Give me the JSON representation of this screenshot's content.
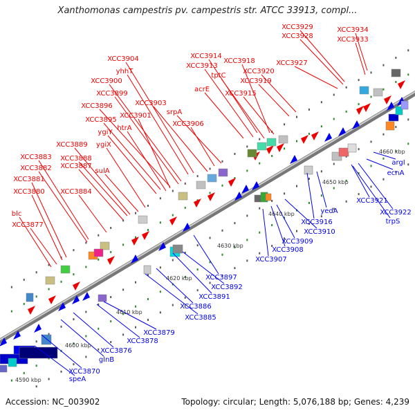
{
  "title": "Xanthomonas campestris pv. campestris str. ATCC 33913, compl...",
  "footer": {
    "accession": "Accession: NC_003902",
    "summary": "Topology: circular; Length: 5,076,188 bp; Genes: 4,239"
  },
  "colors": {
    "forward": "#ee0000",
    "reverse": "#0000ee",
    "axis": "#999999",
    "tick": "#228822"
  },
  "kbp_ticks": [
    "4590 kbp",
    "4600 kbp",
    "4610 kbp",
    "4620 kbp",
    "4630 kbp",
    "4640 kbp",
    "4650 kbp",
    "4660 kbp"
  ],
  "forward_labels": [
    "XCC3929",
    "XCC3928",
    "XCC3934",
    "XCC3933",
    "XCC3914",
    "XCC3918",
    "XCC3913",
    "XCC3927",
    "XCC3904",
    "tptC",
    "XCC3920",
    "yhhT",
    "XCC3919",
    "acrE",
    "XCC3915",
    "XCC3900",
    "XCC3899",
    "XCC3903",
    "XCC3896",
    "srpA",
    "XCC3901",
    "XCC3895",
    "XCC3906",
    "ygiY",
    "htrA",
    "XCC3889",
    "ygiX",
    "XCC3883",
    "XCC3888",
    "XCC3882",
    "XCC3887",
    "sulA",
    "XCC3881",
    "XCC3880",
    "XCC3884",
    "blc",
    "XCC3877"
  ],
  "reverse_labels": [
    "argI",
    "ecnA",
    "XCC3921",
    "XCC3922",
    "trpS",
    "yedA",
    "XCC3916",
    "XCC3910",
    "XCC3909",
    "XCC3908",
    "XCC3907",
    "XCC3897",
    "XCC3892",
    "XCC3891",
    "XCC3886",
    "XCC3885",
    "XCC3879",
    "XCC3878",
    "XCC3876",
    "glnB",
    "XCC3870",
    "speA"
  ]
}
